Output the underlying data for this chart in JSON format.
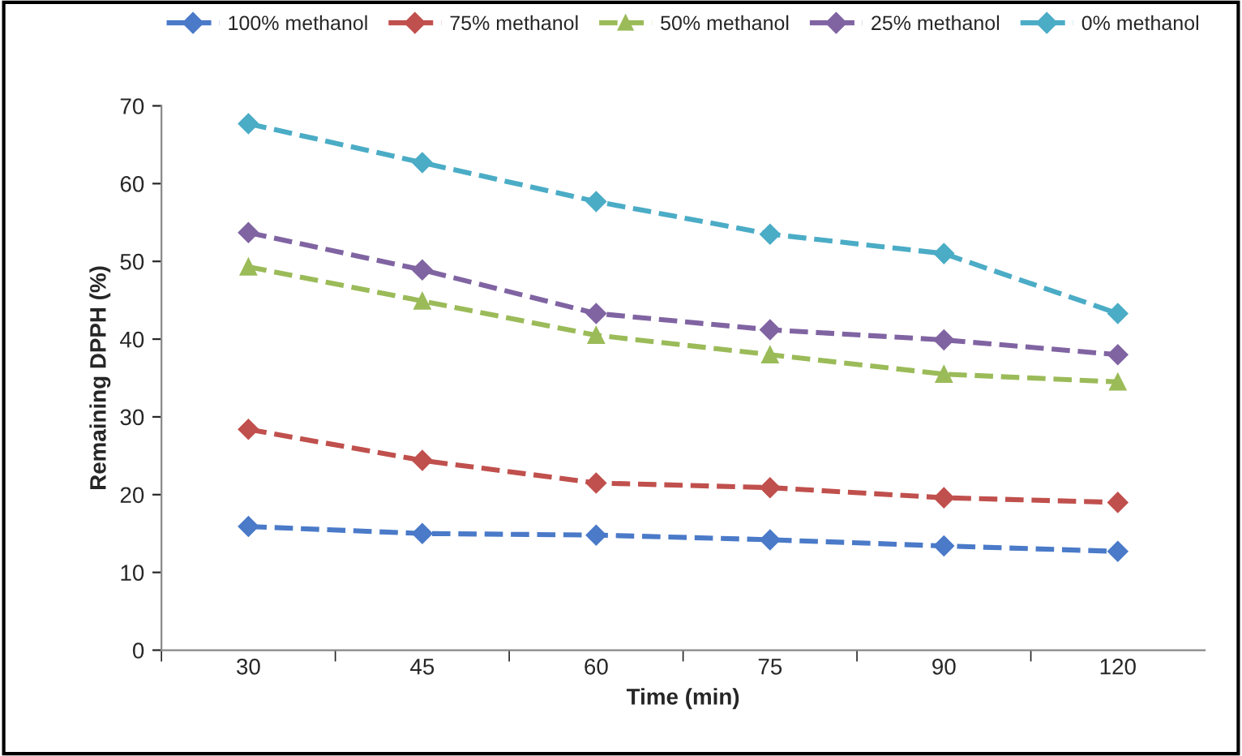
{
  "chart_data": {
    "type": "line",
    "xlabel": "Time (min)",
    "ylabel": "Remaining DPPH (%)",
    "categories": [
      "30",
      "45",
      "60",
      "75",
      "90",
      "120"
    ],
    "series": [
      {
        "name": "100% methanol",
        "color": "#4a7ac8",
        "marker": "diamond",
        "values": [
          15.9,
          15.0,
          14.8,
          14.2,
          13.4,
          12.7
        ]
      },
      {
        "name": "75% methanol",
        "color": "#c0504d",
        "marker": "diamond",
        "values": [
          28.4,
          24.4,
          21.5,
          20.9,
          19.6,
          19.0
        ]
      },
      {
        "name": "50% methanol",
        "color": "#9bbb59",
        "marker": "triangle",
        "values": [
          49.3,
          44.9,
          40.5,
          38.0,
          35.5,
          34.5
        ]
      },
      {
        "name": "25% methanol",
        "color": "#8064a2",
        "marker": "diamond",
        "values": [
          53.7,
          48.9,
          43.3,
          41.2,
          39.9,
          38.0
        ]
      },
      {
        "name": "0% methanol",
        "color": "#4bacc6",
        "marker": "diamond",
        "values": [
          67.7,
          62.7,
          57.7,
          53.5,
          51.0,
          43.3
        ]
      }
    ],
    "ylim": [
      0,
      70
    ],
    "yticks": [
      0,
      10,
      20,
      30,
      40,
      50,
      60,
      70
    ],
    "line_style": "dashed",
    "grid": false,
    "legend": "top"
  }
}
